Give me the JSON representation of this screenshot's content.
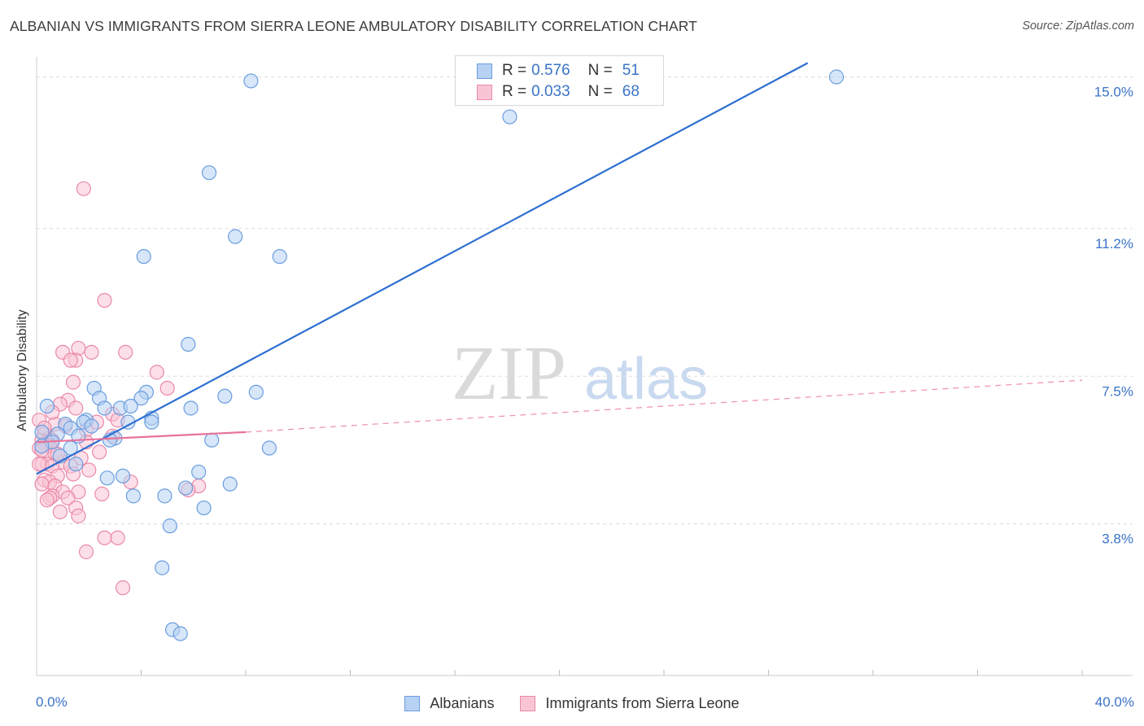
{
  "title": "ALBANIAN VS IMMIGRANTS FROM SIERRA LEONE AMBULATORY DISABILITY CORRELATION CHART",
  "source": "Source: ZipAtlas.com",
  "watermark": {
    "zip": "ZIP",
    "atlas": "atlas"
  },
  "legend": {
    "rows": [
      {
        "r_label": "R =",
        "r_value": "0.576",
        "n_label": "N =",
        "n_value": "51",
        "color": "#6a9ee0"
      },
      {
        "r_label": "R =",
        "r_value": "0.033",
        "n_label": "N =",
        "n_value": "68",
        "color": "#ea8aa8"
      }
    ]
  },
  "bottom_legend": [
    "Albanians",
    "Immigrants from Sierra Leone"
  ],
  "chart_data": {
    "type": "scatter",
    "title": "ALBANIAN VS IMMIGRANTS FROM SIERRA LEONE AMBULATORY DISABILITY CORRELATION CHART",
    "xlabel": "",
    "ylabel": "Ambulatory Disability",
    "xlim": [
      0,
      40
    ],
    "ylim": [
      0,
      15.5
    ],
    "x_tick_labels": [
      "0.0%",
      "40.0%"
    ],
    "y_ticks": [
      {
        "value": 3.8,
        "label": "3.8%"
      },
      {
        "value": 7.5,
        "label": "7.5%"
      },
      {
        "value": 11.2,
        "label": "11.2%"
      },
      {
        "value": 15.0,
        "label": "15.0%"
      }
    ],
    "grid": "horizontal dashed",
    "legend_position": "top-center",
    "series": [
      {
        "name": "Albanians",
        "color": "#6a9ee0",
        "fill": "#b7d1f3",
        "trend": {
          "x0": 0.0,
          "y0": 5.05,
          "x1": 29.5,
          "y1": 15.35,
          "style": "solid",
          "color": "#2e6fd0"
        },
        "points": [
          [
            8.2,
            14.9
          ],
          [
            30.6,
            15.0
          ],
          [
            18.1,
            14.0
          ],
          [
            6.6,
            12.6
          ],
          [
            7.6,
            11.0
          ],
          [
            9.3,
            10.5
          ],
          [
            4.1,
            10.5
          ],
          [
            5.8,
            8.3
          ],
          [
            2.2,
            7.2
          ],
          [
            4.2,
            7.1
          ],
          [
            8.4,
            7.1
          ],
          [
            7.2,
            7.0
          ],
          [
            2.4,
            6.95
          ],
          [
            4.0,
            6.95
          ],
          [
            0.4,
            6.75
          ],
          [
            2.6,
            6.7
          ],
          [
            3.2,
            6.7
          ],
          [
            3.6,
            6.75
          ],
          [
            5.9,
            6.7
          ],
          [
            4.4,
            6.45
          ],
          [
            1.9,
            6.4
          ],
          [
            1.8,
            6.35
          ],
          [
            3.5,
            6.35
          ],
          [
            4.4,
            6.35
          ],
          [
            2.1,
            6.25
          ],
          [
            1.1,
            6.3
          ],
          [
            1.3,
            6.2
          ],
          [
            0.2,
            6.1
          ],
          [
            0.8,
            6.05
          ],
          [
            1.6,
            6.0
          ],
          [
            3.0,
            5.95
          ],
          [
            2.8,
            5.9
          ],
          [
            6.7,
            5.9
          ],
          [
            0.6,
            5.85
          ],
          [
            0.2,
            5.75
          ],
          [
            1.3,
            5.7
          ],
          [
            8.9,
            5.7
          ],
          [
            0.9,
            5.5
          ],
          [
            1.5,
            5.3
          ],
          [
            6.2,
            5.1
          ],
          [
            2.7,
            4.95
          ],
          [
            3.3,
            5.0
          ],
          [
            7.4,
            4.8
          ],
          [
            5.7,
            4.7
          ],
          [
            3.7,
            4.5
          ],
          [
            4.9,
            4.5
          ],
          [
            6.4,
            4.2
          ],
          [
            5.1,
            3.75
          ],
          [
            4.8,
            2.7
          ],
          [
            5.2,
            1.15
          ],
          [
            5.5,
            1.05
          ]
        ]
      },
      {
        "name": "Immigrants from Sierra Leone",
        "color": "#ea8aa8",
        "fill": "#f9c5d5",
        "trend": {
          "x0": 0.0,
          "y0": 5.85,
          "x1": 8.0,
          "y1": 6.1,
          "x2": 40.0,
          "y2": 7.4,
          "style": "solid-then-dashed",
          "color": "#e8739a"
        },
        "points": [
          [
            1.8,
            12.2
          ],
          [
            2.6,
            9.4
          ],
          [
            4.6,
            7.6
          ],
          [
            3.4,
            8.1
          ],
          [
            1.0,
            8.1
          ],
          [
            1.6,
            8.2
          ],
          [
            2.1,
            8.1
          ],
          [
            1.5,
            7.9
          ],
          [
            1.3,
            7.9
          ],
          [
            1.4,
            7.35
          ],
          [
            5.0,
            7.2
          ],
          [
            1.2,
            6.9
          ],
          [
            0.9,
            6.8
          ],
          [
            1.5,
            6.7
          ],
          [
            2.9,
            6.55
          ],
          [
            3.1,
            6.4
          ],
          [
            0.1,
            6.4
          ],
          [
            2.3,
            6.35
          ],
          [
            0.7,
            6.3
          ],
          [
            1.1,
            6.25
          ],
          [
            1.9,
            6.15
          ],
          [
            0.3,
            6.05
          ],
          [
            0.5,
            5.95
          ],
          [
            0.2,
            5.9
          ],
          [
            0.6,
            5.9
          ],
          [
            0.4,
            5.85
          ],
          [
            0.3,
            5.8
          ],
          [
            0.5,
            5.75
          ],
          [
            0.1,
            5.7
          ],
          [
            0.2,
            5.65
          ],
          [
            0.7,
            5.55
          ],
          [
            2.4,
            5.6
          ],
          [
            1.7,
            5.45
          ],
          [
            1.0,
            5.35
          ],
          [
            0.4,
            5.3
          ],
          [
            0.2,
            5.3
          ],
          [
            0.1,
            5.3
          ],
          [
            0.6,
            5.25
          ],
          [
            1.3,
            5.25
          ],
          [
            2.0,
            5.15
          ],
          [
            1.4,
            5.05
          ],
          [
            0.8,
            5.0
          ],
          [
            0.3,
            4.9
          ],
          [
            0.5,
            4.85
          ],
          [
            0.2,
            4.8
          ],
          [
            0.7,
            4.75
          ],
          [
            3.6,
            4.85
          ],
          [
            6.2,
            4.75
          ],
          [
            5.8,
            4.65
          ],
          [
            2.5,
            4.55
          ],
          [
            1.6,
            4.6
          ],
          [
            1.0,
            4.6
          ],
          [
            0.6,
            4.5
          ],
          [
            0.5,
            4.45
          ],
          [
            1.2,
            4.45
          ],
          [
            0.4,
            4.4
          ],
          [
            1.5,
            4.2
          ],
          [
            0.9,
            4.1
          ],
          [
            1.6,
            4.0
          ],
          [
            2.6,
            3.45
          ],
          [
            3.1,
            3.45
          ],
          [
            1.9,
            3.1
          ],
          [
            3.3,
            2.2
          ],
          [
            0.8,
            5.55
          ],
          [
            0.3,
            6.2
          ],
          [
            1.9,
            5.85
          ],
          [
            2.9,
            6.0
          ],
          [
            0.6,
            6.6
          ]
        ]
      }
    ]
  }
}
